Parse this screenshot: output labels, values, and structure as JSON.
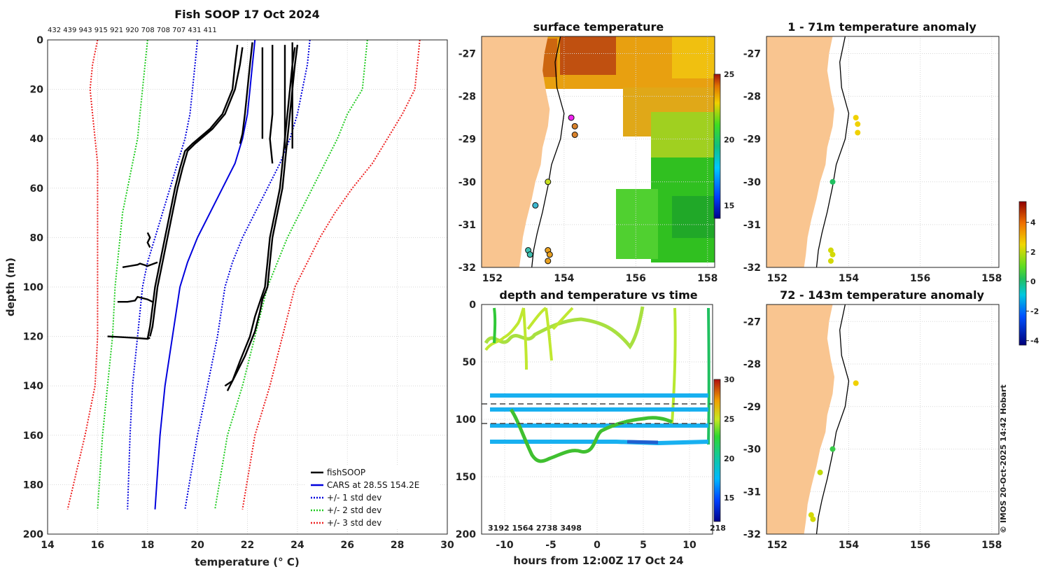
{
  "chart_data": [
    {
      "type": "line",
      "panel": "profile",
      "title": "Fish SOOP 17 Oct 2024",
      "xlabel": "temperature (° C)",
      "ylabel": "depth (m)",
      "xlim": [
        14,
        30
      ],
      "ylim": [
        200,
        0
      ],
      "xticks": [
        14,
        16,
        18,
        20,
        22,
        24,
        26,
        28,
        30
      ],
      "yticks": [
        0,
        20,
        40,
        60,
        80,
        100,
        120,
        140,
        160,
        180,
        200
      ],
      "top_labels": "432 439 943 915 921 920 708 708 707 431 411",
      "legend": [
        "fishSOOP",
        "CARS at 28.5S 154.2E",
        "+/- 1 std dev",
        "+/- 2 std dev",
        "+/- 3 std dev"
      ],
      "series": [
        {
          "name": "CARS at 28.5S 154.2E",
          "style": "solid",
          "color": "#0000dd",
          "x": [
            22.3,
            22.2,
            22.1,
            22.0,
            21.8,
            21.5,
            21.0,
            20.5,
            20.0,
            19.6,
            19.3,
            19.0,
            18.7,
            18.5,
            18.3
          ],
          "y": [
            0,
            10,
            20,
            30,
            40,
            50,
            60,
            70,
            80,
            90,
            100,
            120,
            140,
            160,
            190
          ]
        },
        {
          "name": "+1 std dev",
          "style": "dotted",
          "color": "#0000dd",
          "x": [
            24.5,
            24.4,
            24.2,
            24.0,
            23.7,
            23.3,
            22.8,
            22.3,
            21.8,
            21.4,
            21.1,
            20.8,
            20.4,
            20.0,
            19.5
          ],
          "y": [
            0,
            10,
            20,
            30,
            40,
            50,
            60,
            70,
            80,
            90,
            100,
            120,
            140,
            160,
            190
          ]
        },
        {
          "name": "-1 std dev",
          "style": "dotted",
          "color": "#0000dd",
          "x": [
            20.0,
            19.9,
            19.8,
            19.7,
            19.5,
            19.2,
            18.9,
            18.6,
            18.3,
            18.0,
            17.8,
            17.6,
            17.4,
            17.3,
            17.2
          ],
          "y": [
            0,
            10,
            20,
            30,
            40,
            50,
            60,
            70,
            80,
            90,
            100,
            120,
            140,
            160,
            190
          ]
        },
        {
          "name": "+2 std dev",
          "style": "dotted",
          "color": "#22cc22",
          "x": [
            26.8,
            26.7,
            26.6,
            26.0,
            25.6,
            25.1,
            24.6,
            24.1,
            23.6,
            23.2,
            22.8,
            22.3,
            21.8,
            21.2,
            20.7
          ],
          "y": [
            0,
            10,
            20,
            30,
            40,
            50,
            60,
            70,
            80,
            90,
            100,
            120,
            140,
            160,
            190
          ]
        },
        {
          "name": "-2 std dev",
          "style": "dotted",
          "color": "#22cc22",
          "x": [
            18.0,
            17.9,
            17.8,
            17.7,
            17.6,
            17.4,
            17.2,
            17.0,
            16.9,
            16.8,
            16.7,
            16.6,
            16.4,
            16.2,
            16.0
          ],
          "y": [
            0,
            10,
            20,
            30,
            40,
            50,
            60,
            70,
            80,
            90,
            100,
            120,
            140,
            160,
            190
          ]
        },
        {
          "name": "+3 std dev",
          "style": "dotted",
          "color": "#ee2222",
          "x": [
            28.9,
            28.8,
            28.7,
            28.2,
            27.6,
            27.0,
            26.2,
            25.5,
            24.9,
            24.4,
            23.9,
            23.4,
            22.9,
            22.3,
            21.8
          ],
          "y": [
            0,
            10,
            20,
            30,
            40,
            50,
            60,
            70,
            80,
            90,
            100,
            120,
            140,
            160,
            190
          ]
        },
        {
          "name": "-3 std dev",
          "style": "dotted",
          "color": "#ee2222",
          "x": [
            16.0,
            15.8,
            15.7,
            15.8,
            15.9,
            16.0,
            16.0,
            16.0,
            16.0,
            16.0,
            16.0,
            16.0,
            15.9,
            15.5,
            14.8
          ],
          "y": [
            0,
            10,
            20,
            30,
            40,
            50,
            60,
            70,
            80,
            90,
            100,
            120,
            140,
            160,
            190
          ]
        },
        {
          "name": "fishSOOP profile A",
          "style": "solid",
          "color": "#000000",
          "x": [
            21.6,
            21.5,
            21.4,
            21.0,
            20.5,
            19.8,
            19.5,
            19.3,
            19.1,
            18.9,
            18.7,
            18.5,
            18.3,
            18.2,
            18.1,
            18.0
          ],
          "y": [
            2,
            10,
            20,
            30,
            36,
            42,
            45,
            52,
            60,
            70,
            80,
            90,
            100,
            108,
            116,
            121
          ]
        },
        {
          "name": "fishSOOP profile B",
          "style": "solid",
          "color": "#000000",
          "x": [
            21.8,
            21.7,
            21.5,
            21.1,
            20.6,
            19.9,
            19.6,
            19.4,
            19.2,
            19.0,
            18.8,
            18.6,
            18.4,
            18.3,
            18.2,
            18.1
          ],
          "y": [
            3,
            10,
            20,
            30,
            36,
            42,
            45,
            52,
            60,
            70,
            80,
            90,
            100,
            108,
            116,
            120
          ]
        },
        {
          "name": "fishSOOP profile C",
          "style": "solid",
          "color": "#000000",
          "x": [
            24.0,
            23.9,
            23.8,
            23.7,
            23.6,
            23.5,
            23.4,
            23.2,
            23.0,
            22.9,
            22.8,
            22.6,
            22.5,
            22.3,
            21.9,
            21.5,
            21.2
          ],
          "y": [
            2,
            10,
            20,
            30,
            40,
            50,
            60,
            70,
            80,
            90,
            100,
            105,
            110,
            118,
            128,
            136,
            142
          ]
        },
        {
          "name": "fishSOOP profile D",
          "style": "solid",
          "color": "#000000",
          "x": [
            23.9,
            23.8,
            23.7,
            23.6,
            23.5,
            23.4,
            23.3,
            23.1,
            22.9,
            22.8,
            22.7,
            22.5,
            22.3,
            22.1,
            21.7,
            21.4,
            21.1
          ],
          "y": [
            3,
            10,
            20,
            30,
            40,
            50,
            60,
            70,
            80,
            90,
            100,
            106,
            112,
            120,
            130,
            138,
            140
          ]
        },
        {
          "name": "fishSOOP profile E",
          "style": "solid",
          "color": "#000000",
          "x": [
            22.2,
            22.1,
            22.0,
            21.9,
            21.8,
            21.7
          ],
          "y": [
            1,
            10,
            20,
            30,
            38,
            42
          ]
        },
        {
          "name": "fishSOOP profile F",
          "style": "solid",
          "color": "#000000",
          "x": [
            23.0,
            23.0,
            23.0,
            23.0,
            22.9,
            23.0
          ],
          "y": [
            2,
            10,
            20,
            30,
            40,
            50
          ]
        },
        {
          "name": "fishSOOP profile G",
          "style": "solid",
          "color": "#000000",
          "x": [
            23.5,
            23.5,
            23.5,
            23.5,
            23.5
          ],
          "y": [
            2,
            10,
            20,
            30,
            44
          ]
        },
        {
          "name": "fishSOOP profile H",
          "style": "solid",
          "color": "#000000",
          "x": [
            23.8,
            23.8,
            23.8,
            23.8,
            23.8
          ],
          "y": [
            1,
            10,
            20,
            30,
            44
          ]
        },
        {
          "name": "fishSOOP profile I",
          "style": "solid",
          "color": "#000000",
          "x": [
            22.6,
            22.6,
            22.6,
            22.6,
            22.6
          ],
          "y": [
            3,
            10,
            20,
            30,
            40
          ]
        },
        {
          "name": "fishSOOP profile J",
          "style": "solid",
          "color": "#000000",
          "x": [
            16.4,
            17.0,
            17.5,
            18.0,
            18.1
          ],
          "y": [
            120,
            120.3,
            120.6,
            121,
            120.5
          ]
        },
        {
          "name": "fishSOOP profile K",
          "style": "solid",
          "color": "#000000",
          "x": [
            16.8,
            17.2,
            17.5,
            17.6,
            18.0,
            18.2
          ],
          "y": [
            106,
            106,
            105.5,
            104,
            105,
            106
          ]
        },
        {
          "name": "fishSOOP profile L",
          "style": "solid",
          "color": "#000000",
          "x": [
            17.0,
            17.3,
            17.6,
            17.7,
            18.0,
            18.4
          ],
          "y": [
            92,
            91.5,
            91,
            90.5,
            91.5,
            90
          ]
        },
        {
          "name": "fishSOOP profile M",
          "style": "solid",
          "color": "#000000",
          "x": [
            18.0,
            18.1,
            18.0,
            18.1
          ],
          "y": [
            78,
            80,
            82,
            84
          ]
        }
      ]
    },
    {
      "type": "heatmap",
      "panel": "surface",
      "title": "surface temperature",
      "xlim": [
        151.7,
        158.2
      ],
      "ylim": [
        -32,
        -26.6
      ],
      "xticks": [
        152,
        154,
        156,
        158
      ],
      "yticks": [
        -27,
        -28,
        -29,
        -30,
        -31,
        -32
      ],
      "colorbar": {
        "min": 14,
        "max": 25,
        "ticks": [
          15,
          20,
          25
        ]
      },
      "stations": [
        {
          "lon": 154.2,
          "lat": -28.5,
          "color": "#ee22ee"
        },
        {
          "lon": 154.3,
          "lat": -28.7,
          "color": "#d9822b"
        },
        {
          "lon": 154.3,
          "lat": -28.9,
          "color": "#d9822b"
        },
        {
          "lon": 153.55,
          "lat": -30.0,
          "color": "#c8e020"
        },
        {
          "lon": 153.2,
          "lat": -30.55,
          "color": "#3fb8d0"
        },
        {
          "lon": 153.0,
          "lat": -31.6,
          "color": "#3fc0b0"
        },
        {
          "lon": 153.05,
          "lat": -31.7,
          "color": "#3fc0b0"
        },
        {
          "lon": 153.55,
          "lat": -31.6,
          "color": "#e8a020"
        },
        {
          "lon": 153.6,
          "lat": -31.7,
          "color": "#e8a020"
        },
        {
          "lon": 153.55,
          "lat": -31.85,
          "color": "#e8a020"
        }
      ]
    },
    {
      "type": "scatter",
      "panel": "anomaly_shallow",
      "title": "1 - 71m temperature anomaly",
      "xlim": [
        151.7,
        158.2
      ],
      "ylim": [
        -32,
        -26.6
      ],
      "xticks": [
        152,
        154,
        156,
        158
      ],
      "yticks": [
        -27,
        -28,
        -29,
        -30,
        -31,
        -32
      ],
      "points": [
        {
          "lon": 154.2,
          "lat": -28.5,
          "value": 2.6
        },
        {
          "lon": 154.25,
          "lat": -28.65,
          "value": 2.6
        },
        {
          "lon": 154.25,
          "lat": -28.85,
          "value": 2.6
        },
        {
          "lon": 153.55,
          "lat": -30.0,
          "value": 0.2
        },
        {
          "lon": 153.5,
          "lat": -31.6,
          "value": 2.2
        },
        {
          "lon": 153.55,
          "lat": -31.7,
          "value": 2.2
        },
        {
          "lon": 153.5,
          "lat": -31.85,
          "value": 2.2
        }
      ]
    },
    {
      "type": "scatter",
      "panel": "anomaly_deep",
      "title": "72 - 143m temperature anomaly",
      "xlim": [
        151.7,
        158.2
      ],
      "ylim": [
        -32,
        -26.6
      ],
      "xticks": [
        152,
        154,
        156,
        158
      ],
      "yticks": [
        -27,
        -28,
        -29,
        -30,
        -31,
        -32
      ],
      "colorbar": {
        "min": -4.3,
        "max": 5.4,
        "ticks": [
          4,
          2,
          0,
          -2,
          -4
        ]
      },
      "points": [
        {
          "lon": 154.2,
          "lat": -28.45,
          "value": 2.6
        },
        {
          "lon": 153.55,
          "lat": -30.0,
          "value": 0.5
        },
        {
          "lon": 153.2,
          "lat": -30.55,
          "value": 2.0
        },
        {
          "lon": 152.95,
          "lat": -31.55,
          "value": 2.2
        },
        {
          "lon": 153.0,
          "lat": -31.65,
          "value": 2.2
        }
      ]
    },
    {
      "type": "scatter",
      "panel": "depth_time",
      "title": "depth and temperature vs time",
      "xlabel": "hours from 12:00Z 17 Oct 24",
      "xlim": [
        -12.5,
        12.5
      ],
      "ylim": [
        200,
        0
      ],
      "xticks": [
        -10,
        -5,
        0,
        5,
        10
      ],
      "yticks": [
        0,
        50,
        100,
        150,
        200
      ],
      "colorbar": {
        "min": 12,
        "max": 30,
        "ticks": [
          15,
          20,
          25,
          30
        ]
      },
      "dashed_depths": [
        86,
        103
      ],
      "bottom_labels": "3192 1564 2738 3498",
      "bottom_right_label": "218"
    }
  ],
  "footer": "© IMOS 20-Oct-2025 14:42 Hobart"
}
